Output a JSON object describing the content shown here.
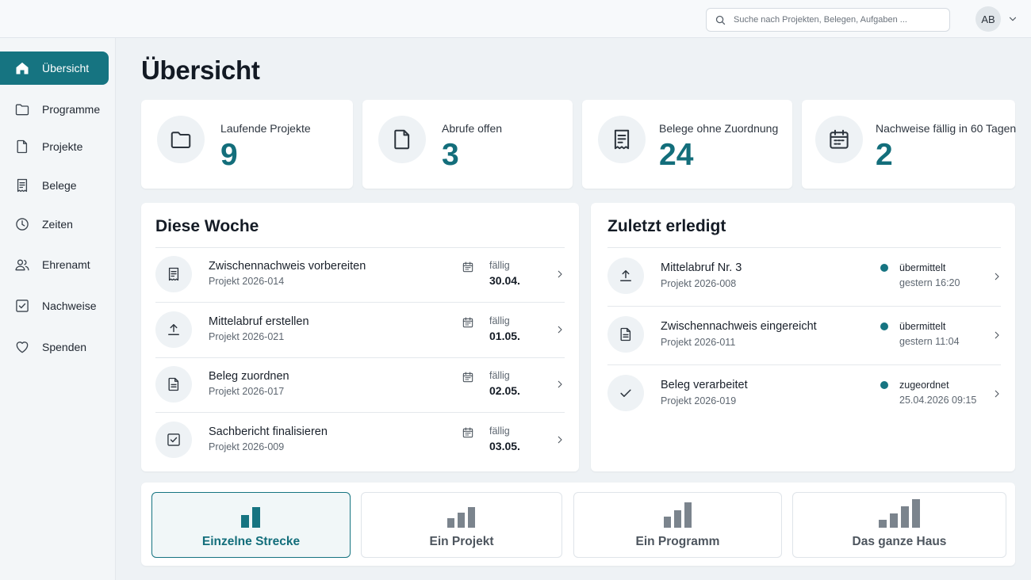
{
  "header": {
    "search_placeholder": "Suche nach Projekten, Belegen, Aufgaben ...",
    "avatar_initials": "AB"
  },
  "sidebar": {
    "items": [
      {
        "label": "Übersicht",
        "icon": "home-icon",
        "active": true
      },
      {
        "label": "Programme",
        "icon": "folder-icon"
      },
      {
        "label": "Projekte",
        "icon": "document-icon"
      },
      {
        "label": "Belege",
        "icon": "receipt-icon"
      },
      {
        "label": "Zeiten",
        "icon": "clock-icon"
      },
      {
        "label": "Ehrenamt",
        "icon": "users-icon"
      },
      {
        "label": "Nachweise",
        "icon": "checkbox-icon"
      },
      {
        "label": "Spenden",
        "icon": "heart-icon"
      }
    ]
  },
  "page": {
    "title": "Übersicht"
  },
  "stats": [
    {
      "label": "Laufende Projekte",
      "value": "9",
      "icon": "folder-icon"
    },
    {
      "label": "Abrufe offen",
      "value": "3",
      "icon": "document-icon"
    },
    {
      "label": "Belege ohne Zuordnung",
      "value": "24",
      "icon": "receipt-icon"
    },
    {
      "label": "Nachweise fällig in 60 Tagen",
      "value": "2",
      "icon": "calendar-icon"
    }
  ],
  "week": {
    "title": "Diese Woche",
    "tasks": [
      {
        "title": "Zwischennachweis vorbereiten",
        "project": "Projekt 2026-014",
        "due_label": "fällig",
        "due_date": "30.04.",
        "icon": "receipt-icon"
      },
      {
        "title": "Mittelabruf erstellen",
        "project": "Projekt 2026-021",
        "due_label": "fällig",
        "due_date": "01.05.",
        "icon": "upload-icon"
      },
      {
        "title": "Beleg zuordnen",
        "project": "Projekt 2026-017",
        "due_label": "fällig",
        "due_date": "02.05.",
        "icon": "document-icon"
      },
      {
        "title": "Sachbericht finalisieren",
        "project": "Projekt 2026-009",
        "due_label": "fällig",
        "due_date": "03.05.",
        "icon": "checkbox-icon"
      }
    ]
  },
  "recent": {
    "title": "Zuletzt erledigt",
    "items": [
      {
        "title": "Mittelabruf Nr. 3",
        "project": "Projekt 2026-008",
        "status": "übermittelt",
        "time": "gestern 16:20",
        "icon": "upload-icon"
      },
      {
        "title": "Zwischennachweis eingereicht",
        "project": "Projekt 2026-011",
        "status": "übermittelt",
        "time": "gestern 11:04",
        "icon": "document-icon"
      },
      {
        "title": "Beleg verarbeitet",
        "project": "Projekt 2026-019",
        "status": "zugeordnet",
        "time": "25.04.2026 09:15",
        "icon": "check-icon"
      }
    ]
  },
  "scopes": [
    {
      "label": "Einzelne Strecke",
      "active": true
    },
    {
      "label": "Ein Projekt"
    },
    {
      "label": "Ein Programm"
    },
    {
      "label": "Das ganze Haus"
    }
  ],
  "colors": {
    "accent": "#167481",
    "accent_text": "#136e7b",
    "bar_gray": "#7b848d"
  }
}
